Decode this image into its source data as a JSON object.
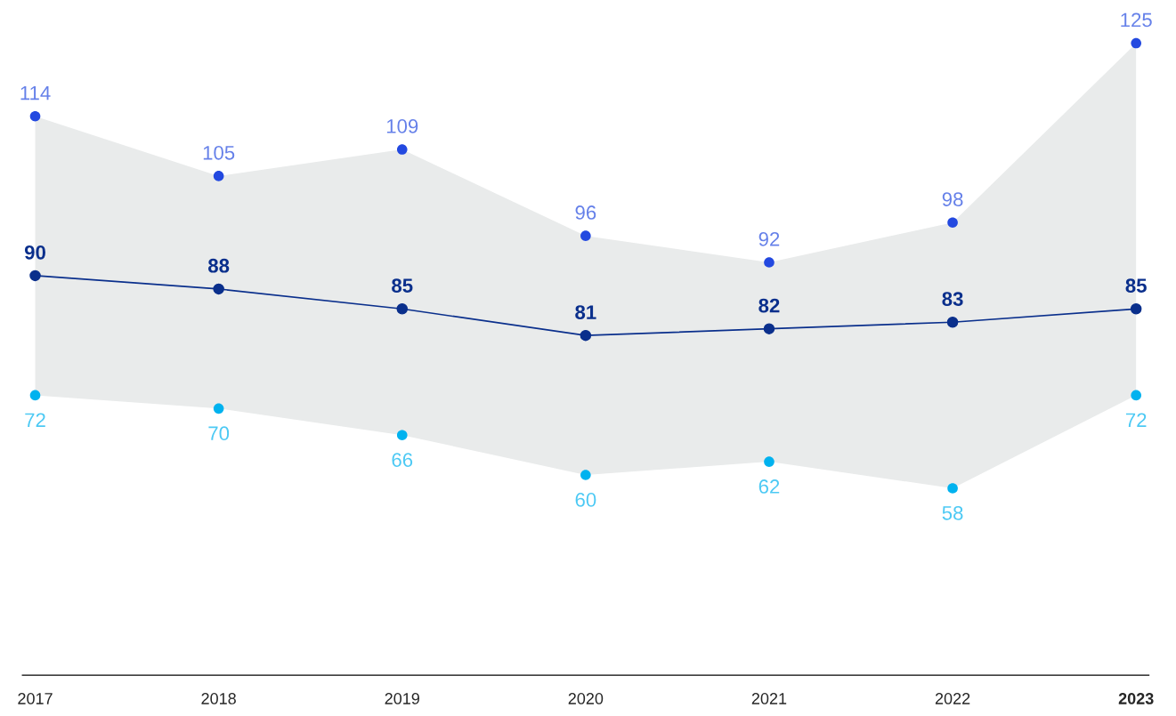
{
  "chart_data": {
    "type": "line",
    "categories": [
      "2017",
      "2018",
      "2019",
      "2020",
      "2021",
      "2022",
      "2023"
    ],
    "series": [
      {
        "type": "scatter",
        "color": "#2349e0",
        "values": [
          114,
          105,
          109,
          96,
          92,
          98,
          125
        ]
      },
      {
        "color": "#0a2f8c",
        "values": [
          90,
          88,
          85,
          81,
          82,
          83,
          85
        ],
        "lower": [
          72,
          70,
          66,
          60,
          62,
          58,
          72
        ],
        "upper": [
          114,
          105,
          109,
          96,
          92,
          98,
          125
        ]
      },
      {
        "type": "scatter",
        "color": "#00b2ef",
        "values": [
          72,
          70,
          66,
          60,
          62,
          58,
          72
        ]
      }
    ],
    "data_labels": true,
    "marker": "circle",
    "grid": false,
    "legend": false
  }
}
